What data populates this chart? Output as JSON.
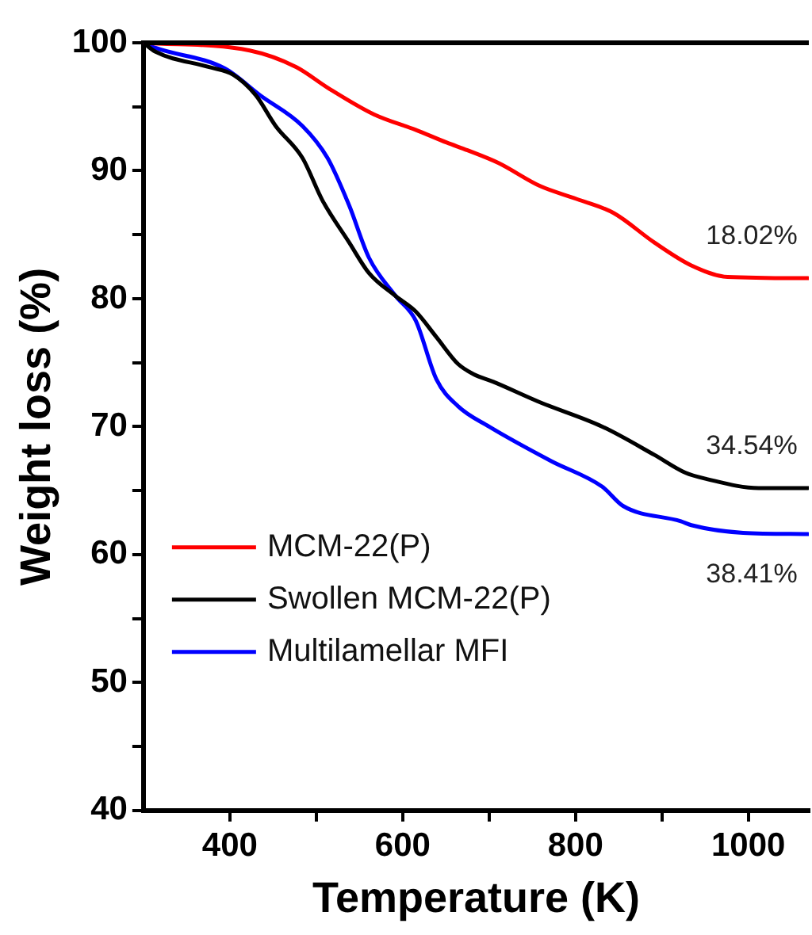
{
  "chart_data": {
    "type": "line",
    "xlabel": "Temperature (K)",
    "ylabel": "Weight loss (%)",
    "xlim": [
      300,
      1070
    ],
    "ylim": [
      40,
      100
    ],
    "xticks": [
      400,
      {
        "value": 500,
        "label": null
      },
      600,
      {
        "value": 700,
        "label": null
      },
      800,
      {
        "value": 900,
        "label": null
      },
      1000
    ],
    "yticks": [
      40,
      {
        "value": 45,
        "label": null
      },
      50,
      {
        "value": 55,
        "label": null
      },
      60,
      {
        "value": 65,
        "label": null
      },
      70,
      {
        "value": 75,
        "label": null
      },
      80,
      {
        "value": 85,
        "label": null
      },
      90,
      {
        "value": 95,
        "label": null
      },
      100
    ],
    "legend": "bottom left",
    "grid": false,
    "marker": "none",
    "line_style": "solid",
    "series": [
      {
        "name": "MCM-22(P)",
        "color": "#ff0000",
        "x": [
          300,
          423,
          477,
          513,
          567,
          615,
          651,
          675,
          711,
          759,
          801,
          844,
          891,
          934,
          976,
          1069
        ],
        "values": [
          100,
          99.4,
          98.1,
          96.5,
          94.4,
          93.2,
          92.2,
          91.6,
          90.6,
          88.8,
          87.8,
          86.7,
          84.4,
          82.6,
          81.7,
          81.6
        ]
      },
      {
        "name": "Swollen MCM-22(P)",
        "color": "#000000",
        "x": [
          300,
          314,
          376,
          404,
          430,
          453,
          484,
          507,
          538,
          561,
          592,
          615,
          639,
          664,
          682,
          705,
          759,
          831,
          891,
          927,
          952,
          1012,
          1035,
          1069
        ],
        "values": [
          100,
          99.3,
          98.1,
          97.5,
          95.9,
          93.5,
          91.0,
          87.7,
          84.4,
          82,
          80.2,
          79,
          77,
          74.9,
          74.1,
          73.5,
          71.9,
          70,
          67.8,
          66.4,
          65.9,
          65.2,
          65.2,
          65.2
        ]
      },
      {
        "name": "Multilamellar MFI",
        "color": "#0000ff",
        "x": [
          300,
          314,
          394,
          435,
          484,
          513,
          538,
          561,
          592,
          615,
          639,
          664,
          700,
          772,
          831,
          855,
          922,
          934,
          994,
          1069
        ],
        "values": [
          100,
          99.6,
          98,
          95.9,
          93.5,
          91,
          87.3,
          83.2,
          80.2,
          78.3,
          73.7,
          71.6,
          70,
          67.3,
          65.3,
          63.8,
          62.6,
          62.3,
          61.7,
          61.6
        ]
      }
    ],
    "annotations": [
      "18.02%",
      "34.54%",
      "38.41%"
    ]
  }
}
